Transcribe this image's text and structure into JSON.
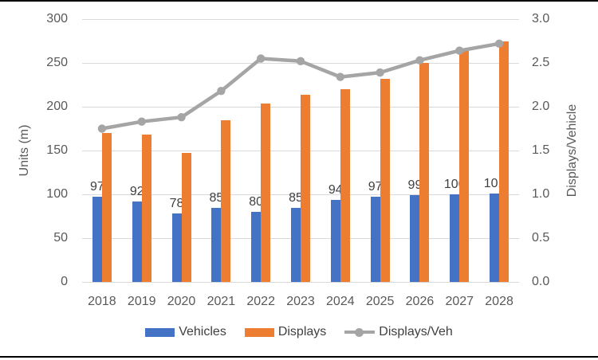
{
  "chart_data": {
    "type": "bar",
    "title": "",
    "categories": [
      "2018",
      "2019",
      "2020",
      "2021",
      "2022",
      "2023",
      "2024",
      "2025",
      "2026",
      "2027",
      "2028"
    ],
    "series": [
      {
        "name": "Vehicles",
        "type": "bar",
        "axis": "left",
        "color": "#4472C4",
        "values": [
          97,
          92,
          78,
          85,
          80,
          85,
          94,
          97,
          99,
          100,
          101
        ],
        "data_labels": true
      },
      {
        "name": "Displays",
        "type": "bar",
        "axis": "left",
        "color": "#ED7D31",
        "values": [
          170,
          168,
          147,
          185,
          204,
          214,
          220,
          232,
          250,
          264,
          275
        ],
        "data_labels": false
      },
      {
        "name": "Displays/Veh",
        "type": "line",
        "axis": "right",
        "color": "#A5A5A5",
        "values": [
          1.75,
          1.83,
          1.88,
          2.18,
          2.55,
          2.52,
          2.34,
          2.39,
          2.53,
          2.64,
          2.72
        ],
        "data_labels": false
      }
    ],
    "left_axis": {
      "title": "Units (m)",
      "min": 0,
      "max": 300,
      "step": 50,
      "ticks": [
        "300",
        "250",
        "200",
        "150",
        "100",
        "50",
        "0"
      ]
    },
    "right_axis": {
      "title": "Displays/Vehicle",
      "min": 0.0,
      "max": 3.0,
      "step": 0.5,
      "ticks": [
        "3.0",
        "2.5",
        "2.0",
        "1.5",
        "1.0",
        "0.5",
        "0.0"
      ]
    },
    "grid": true,
    "legend_position": "bottom",
    "legend": [
      "Vehicles",
      "Displays",
      "Displays/Veh"
    ]
  },
  "colors": {
    "vehicles_bar": "#4472C4",
    "displays_bar": "#ED7D31",
    "line_series": "#A5A5A5",
    "gridline": "#D9D9D9",
    "tick_text": "#595959",
    "data_label_text": "#404040",
    "legend_text": "#404040",
    "frame_border": "#000000"
  }
}
